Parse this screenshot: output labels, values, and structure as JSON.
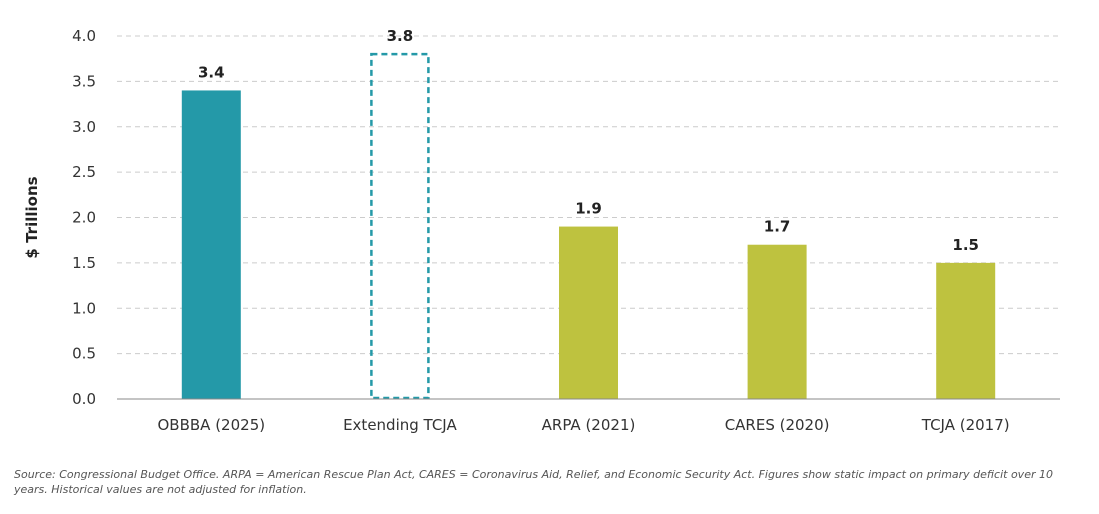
{
  "chart_data": {
    "type": "bar",
    "title": "",
    "xlabel": "",
    "ylabel": "$ Trillions",
    "ylim": [
      0,
      4.0
    ],
    "yticks": [
      "0.0",
      "0.5",
      "1.0",
      "1.5",
      "2.0",
      "2.5",
      "3.0",
      "3.5",
      "4.0"
    ],
    "grid": true,
    "legend": "none",
    "categories": [
      "OBBBA (2025)",
      "Extending TCJA",
      "ARPA (2021)",
      "CARES (2020)",
      "TCJA (2017)"
    ],
    "values": [
      3.4,
      3.8,
      1.9,
      1.7,
      1.5
    ],
    "value_labels": [
      "3.4",
      "3.8",
      "1.9",
      "1.7",
      "1.5"
    ],
    "bar_styles": [
      "solid",
      "dashed-outline",
      "solid",
      "solid",
      "solid"
    ],
    "colors": {
      "teal": "#2499A8",
      "olive": "#BEC23F",
      "grid": "#cccccc",
      "axis": "#888888"
    },
    "bar_colors": [
      "#2499A8",
      "#2499A8",
      "#BEC23F",
      "#BEC23F",
      "#BEC23F"
    ]
  },
  "source_note": "Source: Congressional Budget Office. ARPA = American Rescue Plan Act, CARES = Coronavirus Aid, Relief, and Economic Security Act. Figures show static impact on primary deficit over 10 years. Historical values are not adjusted for inflation."
}
